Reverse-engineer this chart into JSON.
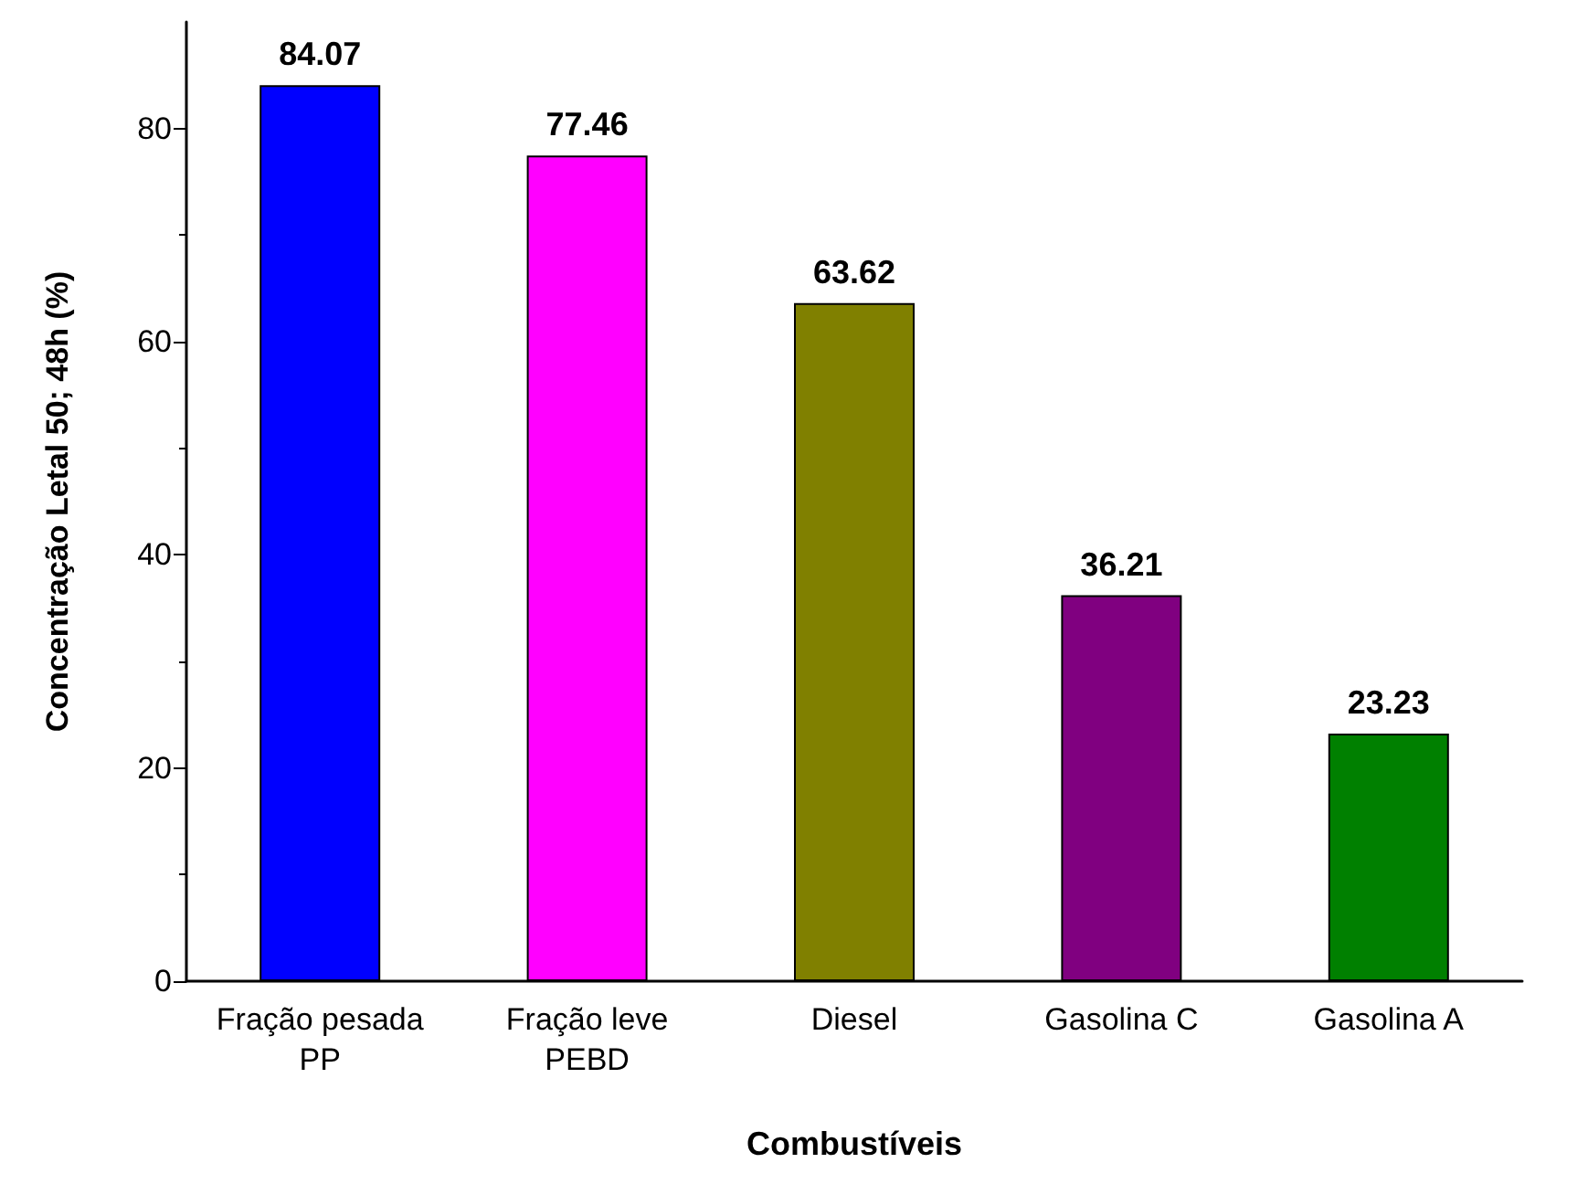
{
  "chart_data": {
    "type": "bar",
    "xlabel": "Combustíveis",
    "ylabel": "Concentração Letal 50; 48h (%)",
    "categories": [
      "Fração pesada\nPP",
      "Fração leve\nPEBD",
      "Diesel",
      "Gasolina C",
      "Gasolina A"
    ],
    "values": [
      84.07,
      77.46,
      63.62,
      36.21,
      23.23
    ],
    "colors": [
      "#0000ff",
      "#ff00ff",
      "#808000",
      "#800080",
      "#008000"
    ],
    "ylim": [
      0,
      90
    ],
    "yticks": [
      0,
      20,
      40,
      60,
      80
    ],
    "grid": false,
    "data_labels": true
  }
}
